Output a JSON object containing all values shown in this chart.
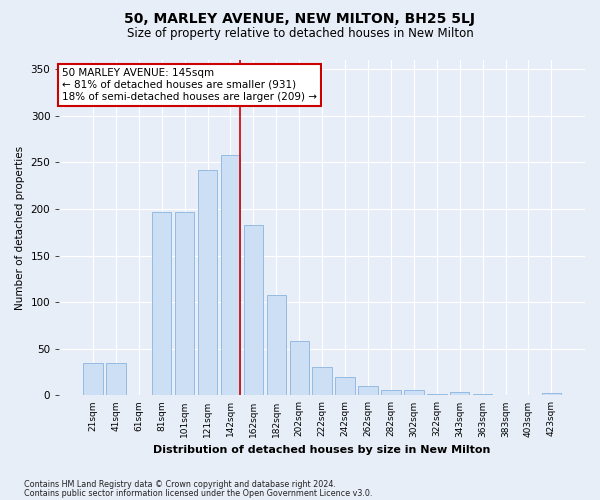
{
  "title": "50, MARLEY AVENUE, NEW MILTON, BH25 5LJ",
  "subtitle": "Size of property relative to detached houses in New Milton",
  "xlabel": "Distribution of detached houses by size in New Milton",
  "ylabel": "Number of detached properties",
  "bar_labels": [
    "21sqm",
    "41sqm",
    "61sqm",
    "81sqm",
    "101sqm",
    "121sqm",
    "142sqm",
    "162sqm",
    "182sqm",
    "202sqm",
    "222sqm",
    "242sqm",
    "262sqm",
    "282sqm",
    "302sqm",
    "322sqm",
    "343sqm",
    "363sqm",
    "383sqm",
    "403sqm",
    "423sqm"
  ],
  "bar_values": [
    35,
    35,
    0,
    197,
    197,
    242,
    258,
    183,
    108,
    58,
    30,
    20,
    10,
    6,
    6,
    1,
    4,
    1,
    0,
    0,
    3
  ],
  "bar_color": "#cddff5",
  "bar_edgecolor": "#8ab4e0",
  "marker_index": 6,
  "annotation_title": "50 MARLEY AVENUE: 145sqm",
  "annotation_line1": "← 81% of detached houses are smaller (931)",
  "annotation_line2": "18% of semi-detached houses are larger (209) →",
  "red_line_color": "#cc0000",
  "annotation_box_facecolor": "#ffffff",
  "annotation_box_edgecolor": "#cc0000",
  "ylim": [
    0,
    360
  ],
  "yticks": [
    0,
    50,
    100,
    150,
    200,
    250,
    300,
    350
  ],
  "background_color": "#e8eef8",
  "plot_background": "#e8eef8",
  "footer1": "Contains HM Land Registry data © Crown copyright and database right 2024.",
  "footer2": "Contains public sector information licensed under the Open Government Licence v3.0."
}
